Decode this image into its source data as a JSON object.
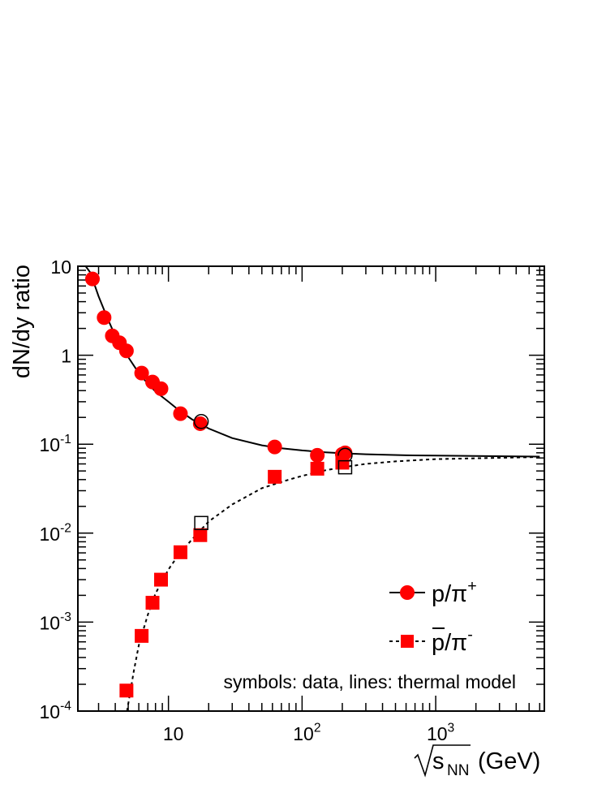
{
  "chart_data": {
    "type": "scatter",
    "title": "",
    "xlabel": "√s_NN (GeV)",
    "xlabel_parts": {
      "s": "s",
      "sub": "NN",
      "unit": "(GeV)"
    },
    "ylabel": "dN/dy ratio",
    "xscale": "log",
    "yscale": "log",
    "xlim": [
      2.1,
      6500
    ],
    "ylim": [
      0.0001,
      10
    ],
    "x_ticks": [
      {
        "value": 10,
        "base": "10",
        "exp": ""
      },
      {
        "value": 100,
        "base": "10",
        "exp": "2"
      },
      {
        "value": 1000,
        "base": "10",
        "exp": "3"
      }
    ],
    "y_ticks": [
      {
        "value": 10,
        "base": "10",
        "exp": ""
      },
      {
        "value": 1,
        "base": "1",
        "exp": ""
      },
      {
        "value": 0.1,
        "base": "10",
        "exp": "-1"
      },
      {
        "value": 0.01,
        "base": "10",
        "exp": "-2"
      },
      {
        "value": 0.001,
        "base": "10",
        "exp": "-3"
      },
      {
        "value": 0.0001,
        "base": "10",
        "exp": "-4"
      }
    ],
    "grid": false,
    "legend_position": "bottom-right",
    "annotation": "symbols: data, lines: thermal model",
    "colors": {
      "data": "#ff0000",
      "line": "#000000",
      "open_marker": "#000000"
    },
    "series": [
      {
        "name": "p/π+",
        "label": {
          "base": "p/π",
          "sup": "+",
          "overline": false
        },
        "marker": "circle",
        "filled": true,
        "points": [
          [
            2.7,
            7.2
          ],
          [
            3.3,
            2.65
          ],
          [
            3.8,
            1.65
          ],
          [
            4.3,
            1.38
          ],
          [
            4.85,
            1.12
          ],
          [
            6.3,
            0.63
          ],
          [
            7.6,
            0.5
          ],
          [
            8.8,
            0.42
          ],
          [
            12.3,
            0.22
          ],
          [
            17.3,
            0.17
          ],
          [
            62.4,
            0.093
          ],
          [
            130,
            0.075
          ],
          [
            200,
            0.077
          ],
          [
            210,
            0.08
          ]
        ]
      },
      {
        "name": "p/π+ (open)",
        "marker": "circle",
        "filled": false,
        "points": [
          [
            17.6,
            0.18
          ],
          [
            210,
            0.075
          ]
        ]
      },
      {
        "name": "p̄/π-",
        "label": {
          "base": "p/π",
          "sup": "-",
          "overline": true
        },
        "marker": "square",
        "filled": true,
        "points": [
          [
            4.85,
            0.00017
          ],
          [
            6.3,
            0.0007
          ],
          [
            7.6,
            0.00165
          ],
          [
            8.8,
            0.003
          ],
          [
            12.3,
            0.0061
          ],
          [
            17.3,
            0.0095
          ],
          [
            62.4,
            0.043
          ],
          [
            130,
            0.053
          ],
          [
            200,
            0.062
          ]
        ]
      },
      {
        "name": "p̄/π- (open)",
        "marker": "square",
        "filled": false,
        "points": [
          [
            17.6,
            0.013
          ],
          [
            210,
            0.055
          ]
        ]
      },
      {
        "name": "p/π+ model",
        "style": "solid",
        "points": [
          [
            2.4,
            11
          ],
          [
            2.6,
            8.5
          ],
          [
            3,
            4.6
          ],
          [
            3.5,
            2.6
          ],
          [
            4,
            1.65
          ],
          [
            5,
            0.95
          ],
          [
            6,
            0.63
          ],
          [
            7,
            0.48
          ],
          [
            8,
            0.39
          ],
          [
            10,
            0.3
          ],
          [
            12,
            0.24
          ],
          [
            15,
            0.19
          ],
          [
            20,
            0.15
          ],
          [
            30,
            0.117
          ],
          [
            50,
            0.097
          ],
          [
            70,
            0.09
          ],
          [
            100,
            0.085
          ],
          [
            150,
            0.081
          ],
          [
            200,
            0.079
          ],
          [
            300,
            0.077
          ],
          [
            600,
            0.075
          ],
          [
            1000,
            0.0745
          ],
          [
            6000,
            0.0725
          ]
        ]
      },
      {
        "name": "p̄/π- model",
        "style": "dashed",
        "points": [
          [
            4.9,
            7.5e-05
          ],
          [
            5.5,
            0.00028
          ],
          [
            6,
            0.00055
          ],
          [
            7,
            0.0012
          ],
          [
            8,
            0.0021
          ],
          [
            10,
            0.0039
          ],
          [
            12,
            0.0058
          ],
          [
            15,
            0.0085
          ],
          [
            20,
            0.0135
          ],
          [
            30,
            0.021
          ],
          [
            50,
            0.032
          ],
          [
            80,
            0.04
          ],
          [
            100,
            0.044
          ],
          [
            150,
            0.051
          ],
          [
            200,
            0.055
          ],
          [
            300,
            0.06
          ],
          [
            500,
            0.064
          ],
          [
            1000,
            0.068
          ],
          [
            6000,
            0.0718
          ]
        ]
      }
    ]
  }
}
